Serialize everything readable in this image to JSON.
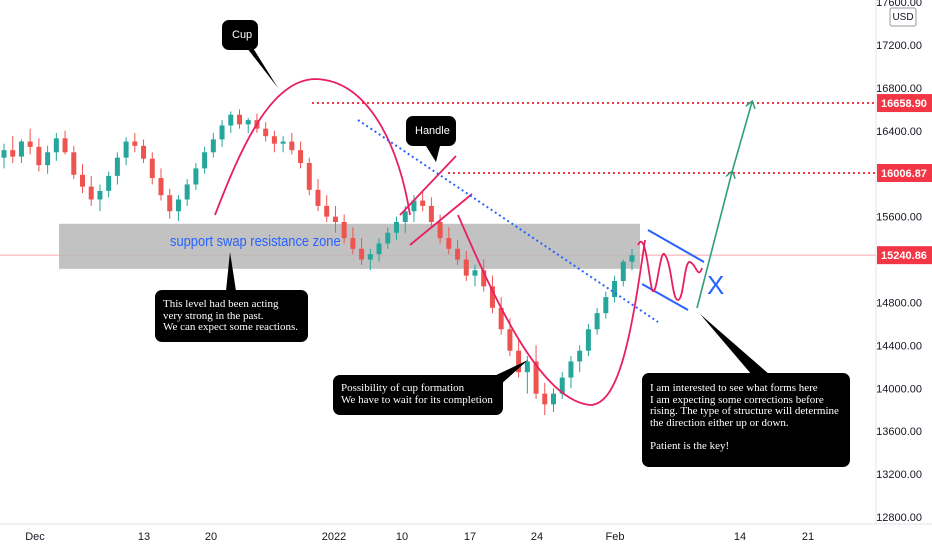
{
  "chart_data": {
    "type": "candlestick",
    "currency": "USD",
    "y_axis_ticks": [
      17600,
      17200,
      16800,
      16400,
      16000,
      15600,
      15200,
      14800,
      14400,
      14000,
      13600,
      13200,
      12800
    ],
    "x_axis_ticks": [
      "Dec",
      "13",
      "20",
      "2022",
      "10",
      "17",
      "24",
      "Feb",
      "14",
      "21"
    ],
    "price_labels": [
      {
        "text": "16658.90",
        "value": 16658.9,
        "color": "#f23645"
      },
      {
        "text": "16006.87",
        "value": 16006.87,
        "color": "#f23645"
      },
      {
        "text": "15240.86",
        "value": 15240.86,
        "color": "#f23645"
      }
    ],
    "zone": {
      "label": "support swap resistance zone",
      "from": 15160,
      "to": 15580
    },
    "candles_ohlc": [
      [
        16150,
        16280,
        16050,
        16220
      ],
      [
        16220,
        16350,
        16100,
        16160
      ],
      [
        16160,
        16320,
        16100,
        16300
      ],
      [
        16300,
        16420,
        16180,
        16250
      ],
      [
        16250,
        16330,
        16020,
        16080
      ],
      [
        16080,
        16260,
        16000,
        16200
      ],
      [
        16200,
        16380,
        16120,
        16330
      ],
      [
        16330,
        16400,
        16180,
        16200
      ],
      [
        16200,
        16260,
        15950,
        15990
      ],
      [
        15990,
        16090,
        15820,
        15880
      ],
      [
        15880,
        15980,
        15700,
        15760
      ],
      [
        15760,
        15900,
        15650,
        15840
      ],
      [
        15840,
        16020,
        15780,
        15980
      ],
      [
        15980,
        16200,
        15900,
        16150
      ],
      [
        16150,
        16340,
        16080,
        16300
      ],
      [
        16300,
        16380,
        16200,
        16260
      ],
      [
        16260,
        16320,
        16100,
        16140
      ],
      [
        16140,
        16200,
        15900,
        15960
      ],
      [
        15960,
        16050,
        15750,
        15800
      ],
      [
        15800,
        15860,
        15580,
        15650
      ],
      [
        15650,
        15800,
        15560,
        15760
      ],
      [
        15760,
        15950,
        15700,
        15900
      ],
      [
        15900,
        16100,
        15850,
        16050
      ],
      [
        16050,
        16250,
        16000,
        16200
      ],
      [
        16200,
        16380,
        16150,
        16320
      ],
      [
        16320,
        16500,
        16250,
        16450
      ],
      [
        16450,
        16580,
        16380,
        16550
      ],
      [
        16550,
        16600,
        16420,
        16460
      ],
      [
        16460,
        16520,
        16380,
        16500
      ],
      [
        16500,
        16560,
        16380,
        16420
      ],
      [
        16420,
        16480,
        16300,
        16350
      ],
      [
        16350,
        16400,
        16200,
        16280
      ],
      [
        16280,
        16350,
        16200,
        16300
      ],
      [
        16300,
        16380,
        16180,
        16220
      ],
      [
        16220,
        16300,
        16050,
        16100
      ],
      [
        16100,
        16150,
        15800,
        15850
      ],
      [
        15850,
        15950,
        15650,
        15700
      ],
      [
        15700,
        15800,
        15550,
        15600
      ],
      [
        15600,
        15700,
        15450,
        15550
      ],
      [
        15550,
        15620,
        15350,
        15400
      ],
      [
        15400,
        15500,
        15250,
        15300
      ],
      [
        15300,
        15400,
        15150,
        15200
      ],
      [
        15200,
        15300,
        15100,
        15250
      ],
      [
        15250,
        15400,
        15180,
        15350
      ],
      [
        15350,
        15500,
        15300,
        15450
      ],
      [
        15450,
        15600,
        15380,
        15550
      ],
      [
        15550,
        15700,
        15450,
        15650
      ],
      [
        15650,
        15800,
        15550,
        15750
      ],
      [
        15750,
        15850,
        15650,
        15700
      ],
      [
        15700,
        15780,
        15500,
        15550
      ],
      [
        15550,
        15620,
        15350,
        15400
      ],
      [
        15400,
        15500,
        15250,
        15300
      ],
      [
        15300,
        15380,
        15150,
        15200
      ],
      [
        15200,
        15280,
        15000,
        15050
      ],
      [
        15050,
        15150,
        14950,
        15100
      ],
      [
        15100,
        15200,
        14900,
        14950
      ],
      [
        14950,
        15050,
        14700,
        14750
      ],
      [
        14750,
        14850,
        14500,
        14550
      ],
      [
        14550,
        14650,
        14300,
        14350
      ],
      [
        14350,
        14450,
        14100,
        14150
      ],
      [
        14150,
        14300,
        13950,
        14250
      ],
      [
        14250,
        14400,
        13900,
        13950
      ],
      [
        13950,
        14050,
        13750,
        13850
      ],
      [
        13850,
        14000,
        13780,
        13950
      ],
      [
        13950,
        14150,
        13900,
        14100
      ],
      [
        14100,
        14300,
        14000,
        14250
      ],
      [
        14250,
        14400,
        14150,
        14350
      ],
      [
        14350,
        14600,
        14300,
        14550
      ],
      [
        14550,
        14750,
        14500,
        14700
      ],
      [
        14700,
        14900,
        14650,
        14850
      ],
      [
        14850,
        15050,
        14800,
        15000
      ],
      [
        15000,
        15200,
        14950,
        15180
      ],
      [
        15180,
        15300,
        15100,
        15240
      ]
    ]
  },
  "annotations": {
    "cup_label": "Cup",
    "handle_label": "Handle",
    "x_mark": "X",
    "note_level": "This level had been acting\nvery strong in the past.\nWe can expect some reactions.",
    "note_cup": "Possibility of cup formation\nWe have to wait for its completion",
    "note_structure": "I am interested to see what forms here\nI am expecting some corrections before\nrising. The type of structure will determine\n the direction either up or down.\n\nPatient is the key!"
  },
  "colors": {
    "up": "#26a69a",
    "down": "#ef5350",
    "cup_curve": "#e91e63",
    "trendline": "#2962ff",
    "target_arrow": "#2e9e7e",
    "dotted_level": "#f23645",
    "zone_fill": "#b7b7b7"
  }
}
